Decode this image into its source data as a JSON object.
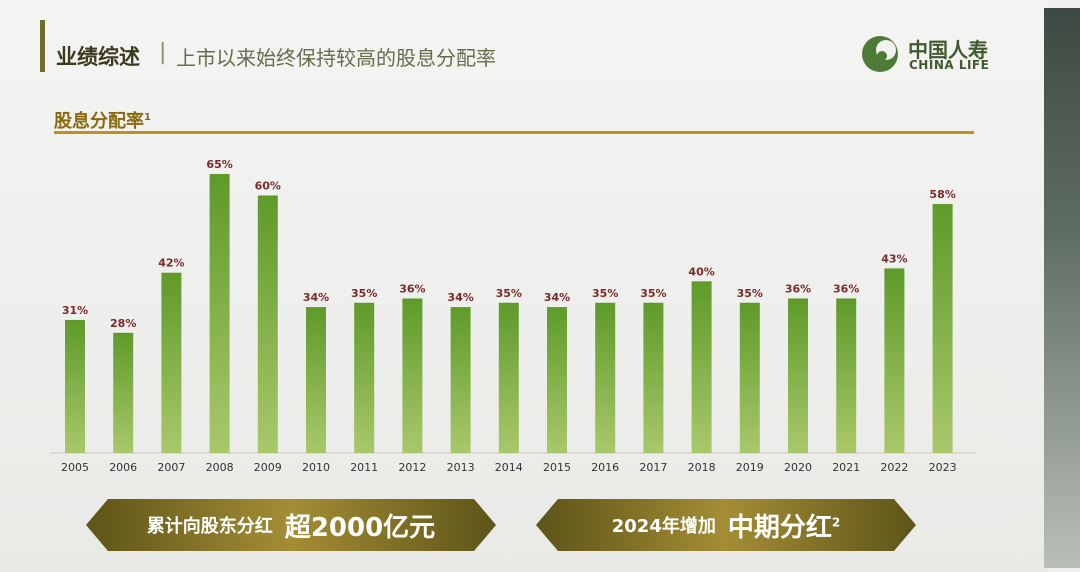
{
  "header": {
    "title": "业绩综述",
    "separator": "|",
    "subtitle": "上市以来始终保持较高的股息分配率"
  },
  "logo": {
    "cn": "中国人寿",
    "en": "CHINA LIFE"
  },
  "section": {
    "title": "股息分配率",
    "footnote": "1"
  },
  "colors": {
    "bar_top": "#5e9a2a",
    "bar_bottom": "#a9c86b",
    "label": "#7a2a2a",
    "accent": "#b9951e"
  },
  "chart_data": {
    "type": "bar",
    "title": "股息分配率",
    "categories": [
      "2005",
      "2006",
      "2007",
      "2008",
      "2009",
      "2010",
      "2011",
      "2012",
      "2013",
      "2014",
      "2015",
      "2016",
      "2017",
      "2018",
      "2019",
      "2020",
      "2021",
      "2022",
      "2023"
    ],
    "values": [
      31,
      28,
      42,
      65,
      60,
      34,
      35,
      36,
      34,
      35,
      34,
      35,
      35,
      40,
      35,
      36,
      36,
      43,
      58
    ],
    "value_labels": [
      "31%",
      "28%",
      "42%",
      "65%",
      "60%",
      "34%",
      "35%",
      "36%",
      "34%",
      "35%",
      "34%",
      "35%",
      "35%",
      "40%",
      "35%",
      "36%",
      "36%",
      "43%",
      "58%"
    ],
    "ylim": [
      0,
      65
    ],
    "grid": false
  },
  "banners": {
    "left": {
      "small": "累计向股东分红",
      "big": "超2000亿元"
    },
    "right": {
      "small": "2024年增加",
      "big": "中期分红",
      "footnote": "2"
    }
  }
}
